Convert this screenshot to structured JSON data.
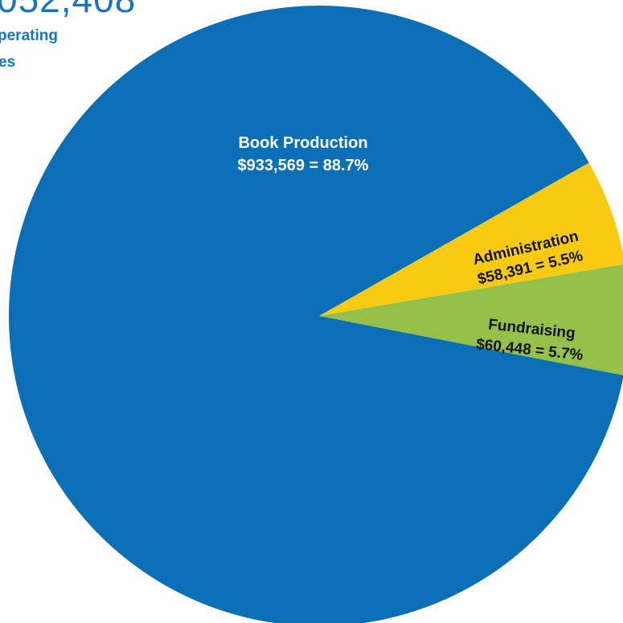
{
  "header": {
    "total_fragment": "052,408",
    "subtitle_line1": "perating",
    "subtitle_line2": "es"
  },
  "colors": {
    "book_production": "#0b6fb5",
    "administration": "#f8cb12",
    "fundraising": "#95c14a",
    "header_text": "#1a73bd"
  },
  "chart_data": {
    "type": "pie",
    "title": "",
    "slices": [
      {
        "name": "Book Production",
        "value": 933569,
        "percent": 88.7,
        "label_line2": "$933,569 = 88.7%"
      },
      {
        "name": "Administration",
        "value": 58391,
        "percent": 5.5,
        "label_line2": "$58,391 = 5.5%"
      },
      {
        "name": "Fundraising",
        "value": 60448,
        "percent": 5.7,
        "label_line2": "$60,448 = 5.7%"
      }
    ]
  }
}
